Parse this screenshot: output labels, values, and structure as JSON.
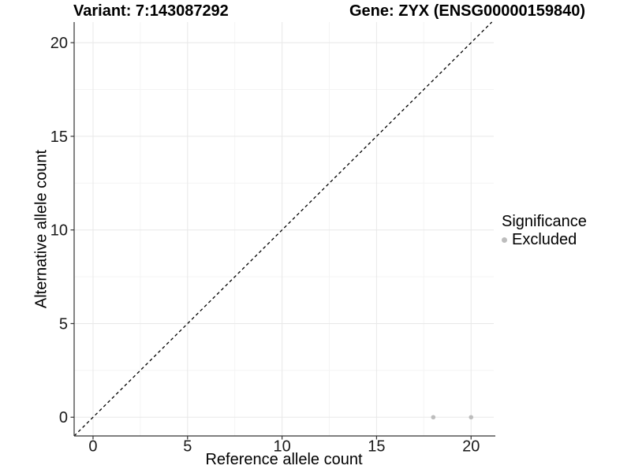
{
  "chart_data": {
    "type": "scatter",
    "title_left": "Variant: 7:143087292",
    "title_right": "Gene: ZYX (ENSG00000159840)",
    "xlabel": "Reference allele count",
    "ylabel": "Alternative allele count",
    "xlim": [
      -1,
      21.2
    ],
    "ylim": [
      -1,
      21.1
    ],
    "xticks": [
      0,
      5,
      10,
      15,
      20
    ],
    "yticks": [
      0,
      5,
      10,
      15,
      20
    ],
    "grid": {
      "major_color": "#e8e8e8",
      "minor_color": "#f4f4f4",
      "minor": "midpoints"
    },
    "series": [
      {
        "name": "Excluded",
        "color": "#bdbdbd",
        "points": [
          {
            "x": 18,
            "y": 0
          },
          {
            "x": 20,
            "y": 0
          }
        ]
      }
    ],
    "reference_line": {
      "type": "identity",
      "slope": 1,
      "intercept": 0,
      "style": "dashed",
      "color": "#000000"
    },
    "legend": {
      "title": "Significance",
      "position": "right",
      "items": [
        {
          "label": "Excluded",
          "color": "#bdbdbd",
          "marker": "dot-icon"
        }
      ]
    },
    "axis_color": "#333333",
    "tick_label_color": "#1a1a1a"
  }
}
